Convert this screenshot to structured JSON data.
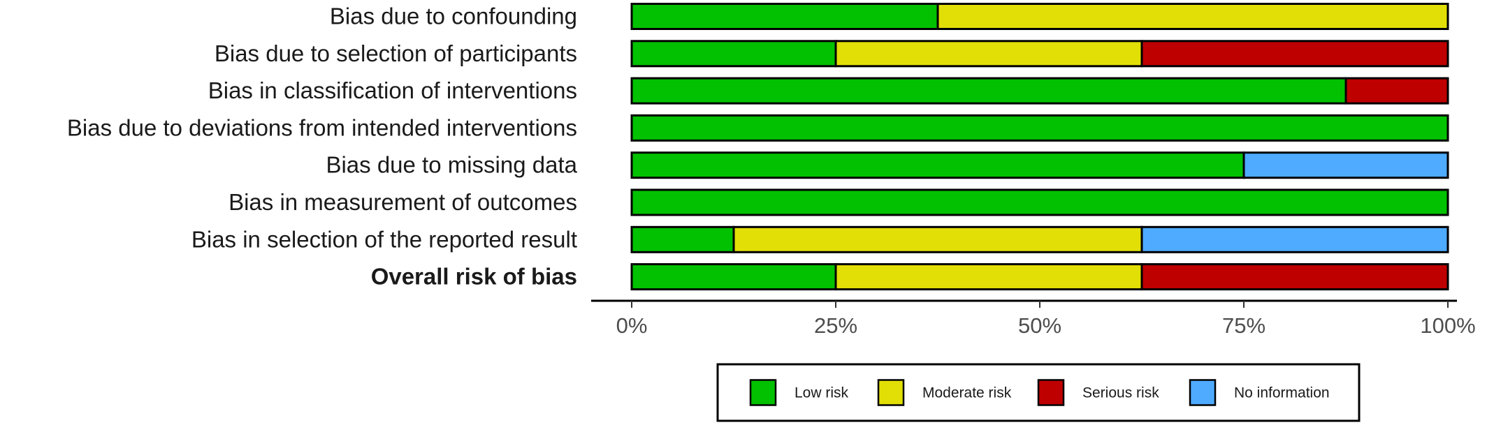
{
  "chart_data": {
    "type": "bar",
    "orientation": "horizontal",
    "stacked": true,
    "title": "",
    "xlabel": "",
    "ylabel": "",
    "xlim": [
      0,
      100
    ],
    "x_ticks": [
      "0%",
      "25%",
      "50%",
      "75%",
      "100%"
    ],
    "x_tick_values": [
      0,
      25,
      50,
      75,
      100
    ],
    "categories": [
      "Bias due to confounding",
      "Bias due to selection of participants",
      "Bias in classification of interventions",
      "Bias due to deviations from intended interventions",
      "Bias due to missing data",
      "Bias in measurement of outcomes",
      "Bias in selection of the reported result",
      "Overall risk of bias"
    ],
    "bold_categories": [
      "Overall risk of bias"
    ],
    "series": [
      {
        "name": "Low risk",
        "color": "#02c100",
        "values": [
          37.5,
          25,
          87.5,
          100,
          75,
          100,
          12.5,
          25
        ]
      },
      {
        "name": "Moderate risk",
        "color": "#e2df07",
        "values": [
          62.5,
          37.5,
          0,
          0,
          0,
          0,
          50,
          37.5
        ]
      },
      {
        "name": "Serious risk",
        "color": "#bf0000",
        "values": [
          0,
          37.5,
          12.5,
          0,
          0,
          0,
          0,
          37.5
        ]
      },
      {
        "name": "No information",
        "color": "#4eabff",
        "values": [
          0,
          0,
          0,
          0,
          25,
          0,
          37.5,
          0
        ]
      }
    ],
    "legend_position": "bottom",
    "grid": false
  }
}
